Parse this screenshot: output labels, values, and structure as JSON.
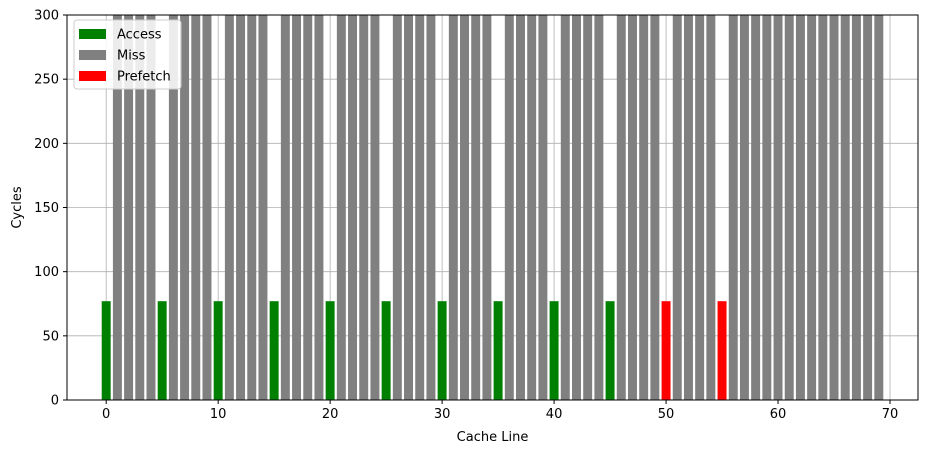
{
  "chart_data": {
    "type": "bar",
    "xlabel": "Cache Line",
    "ylabel": "Cycles",
    "xlim": [
      -3.5,
      72.5
    ],
    "ylim": [
      0,
      300
    ],
    "xticks": [
      0,
      10,
      20,
      30,
      40,
      50,
      60,
      70
    ],
    "yticks": [
      0,
      50,
      100,
      150,
      200,
      250,
      300
    ],
    "grid": true,
    "legend_position": "top-left",
    "bar_width": 0.8,
    "series": [
      {
        "name": "Access",
        "color": "#008000",
        "x": [
          0,
          5,
          10,
          15,
          20,
          25,
          30,
          35,
          40,
          45
        ],
        "values": [
          77,
          77,
          77,
          77,
          77,
          77,
          77,
          77,
          77,
          77
        ]
      },
      {
        "name": "Miss",
        "color": "#808080",
        "x": [
          1,
          2,
          3,
          4,
          6,
          7,
          8,
          9,
          11,
          12,
          13,
          14,
          16,
          17,
          18,
          19,
          21,
          22,
          23,
          24,
          26,
          27,
          28,
          29,
          31,
          32,
          33,
          34,
          36,
          37,
          38,
          39,
          41,
          42,
          43,
          44,
          46,
          47,
          48,
          49,
          51,
          52,
          53,
          54,
          56,
          57,
          58,
          59,
          60,
          61,
          62,
          63,
          64,
          65,
          66,
          67,
          68,
          69
        ],
        "values": [
          300,
          300,
          300,
          300,
          300,
          300,
          300,
          300,
          300,
          300,
          300,
          300,
          300,
          300,
          300,
          300,
          300,
          300,
          300,
          300,
          300,
          300,
          300,
          300,
          300,
          300,
          300,
          300,
          300,
          300,
          300,
          300,
          300,
          300,
          300,
          300,
          300,
          300,
          300,
          300,
          300,
          300,
          300,
          300,
          300,
          300,
          300,
          300,
          300,
          300,
          300,
          300,
          300,
          300,
          300,
          300,
          300,
          300
        ]
      },
      {
        "name": "Prefetch",
        "color": "#ff0000",
        "x": [
          50,
          55
        ],
        "values": [
          77,
          77
        ]
      }
    ]
  }
}
